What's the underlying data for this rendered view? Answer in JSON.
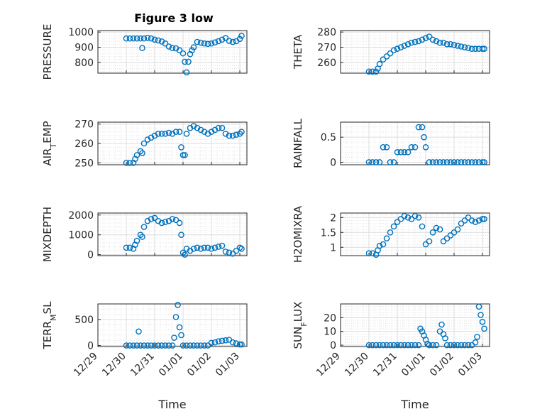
{
  "figure_title": "Figure 3 low",
  "colors": {
    "marker": "#0072BD",
    "axis": "#262626",
    "grid": "#dcdcdc"
  },
  "chart_data": [
    {
      "type": "scatter",
      "id": "pressure",
      "title": "Figure 3 low",
      "ylabel": "PRESSURE",
      "ylim": [
        730,
        1010
      ],
      "yticks": [
        800,
        900,
        1000
      ],
      "xlim": [
        0,
        4.2
      ],
      "grid": true,
      "show_xticks": false,
      "points": [
        [
          0.8,
          958
        ],
        [
          0.9,
          958
        ],
        [
          1.0,
          958
        ],
        [
          1.1,
          958
        ],
        [
          1.2,
          958
        ],
        [
          1.25,
          895
        ],
        [
          1.3,
          958
        ],
        [
          1.4,
          962
        ],
        [
          1.5,
          958
        ],
        [
          1.6,
          950
        ],
        [
          1.7,
          945
        ],
        [
          1.8,
          938
        ],
        [
          1.9,
          925
        ],
        [
          2.0,
          905
        ],
        [
          2.1,
          895
        ],
        [
          2.2,
          893
        ],
        [
          2.3,
          880
        ],
        [
          2.4,
          860
        ],
        [
          2.45,
          805
        ],
        [
          2.5,
          735
        ],
        [
          2.55,
          805
        ],
        [
          2.6,
          855
        ],
        [
          2.65,
          880
        ],
        [
          2.7,
          900
        ],
        [
          2.8,
          935
        ],
        [
          2.9,
          930
        ],
        [
          3.0,
          925
        ],
        [
          3.1,
          922
        ],
        [
          3.2,
          925
        ],
        [
          3.3,
          932
        ],
        [
          3.4,
          940
        ],
        [
          3.5,
          950
        ],
        [
          3.6,
          960
        ],
        [
          3.7,
          942
        ],
        [
          3.8,
          935
        ],
        [
          3.9,
          940
        ],
        [
          4.0,
          955
        ],
        [
          4.05,
          975
        ]
      ]
    },
    {
      "type": "scatter",
      "id": "theta",
      "ylabel": "THETA",
      "ylim": [
        253,
        281
      ],
      "yticks": [
        260,
        270,
        280
      ],
      "xlim": [
        0,
        4.2
      ],
      "grid": true,
      "show_xticks": false,
      "points": [
        [
          0.8,
          254
        ],
        [
          0.9,
          254
        ],
        [
          1.0,
          254
        ],
        [
          1.05,
          256
        ],
        [
          1.1,
          259
        ],
        [
          1.2,
          262
        ],
        [
          1.3,
          264
        ],
        [
          1.4,
          266
        ],
        [
          1.5,
          268
        ],
        [
          1.6,
          269
        ],
        [
          1.7,
          270
        ],
        [
          1.8,
          271
        ],
        [
          1.9,
          272
        ],
        [
          2.0,
          273
        ],
        [
          2.1,
          273.5
        ],
        [
          2.2,
          274
        ],
        [
          2.3,
          275
        ],
        [
          2.4,
          276
        ],
        [
          2.5,
          277
        ],
        [
          2.6,
          275
        ],
        [
          2.7,
          274
        ],
        [
          2.8,
          273
        ],
        [
          2.9,
          273
        ],
        [
          3.0,
          272
        ],
        [
          3.1,
          272
        ],
        [
          3.2,
          271.5
        ],
        [
          3.3,
          271
        ],
        [
          3.4,
          270.5
        ],
        [
          3.5,
          270
        ],
        [
          3.6,
          269.5
        ],
        [
          3.7,
          269
        ],
        [
          3.8,
          269
        ],
        [
          3.9,
          269
        ],
        [
          4.0,
          269
        ],
        [
          4.05,
          269
        ]
      ]
    },
    {
      "type": "scatter",
      "id": "air_temp",
      "ylabel": "AIR_TEMP",
      "ylim": [
        249,
        271
      ],
      "yticks": [
        250,
        260,
        270
      ],
      "xlim": [
        0,
        4.2
      ],
      "grid": true,
      "show_xticks": false,
      "points": [
        [
          0.8,
          250
        ],
        [
          0.9,
          250
        ],
        [
          1.0,
          250
        ],
        [
          1.05,
          252
        ],
        [
          1.1,
          254
        ],
        [
          1.2,
          256
        ],
        [
          1.25,
          255
        ],
        [
          1.3,
          260
        ],
        [
          1.4,
          262
        ],
        [
          1.5,
          263
        ],
        [
          1.6,
          264
        ],
        [
          1.7,
          265
        ],
        [
          1.8,
          265
        ],
        [
          1.9,
          265
        ],
        [
          2.0,
          265.5
        ],
        [
          2.1,
          265
        ],
        [
          2.2,
          266
        ],
        [
          2.3,
          266
        ],
        [
          2.35,
          258
        ],
        [
          2.4,
          254
        ],
        [
          2.45,
          254
        ],
        [
          2.5,
          265
        ],
        [
          2.6,
          268
        ],
        [
          2.7,
          269
        ],
        [
          2.8,
          268
        ],
        [
          2.9,
          267
        ],
        [
          3.0,
          266
        ],
        [
          3.1,
          265
        ],
        [
          3.2,
          266
        ],
        [
          3.3,
          267
        ],
        [
          3.4,
          268
        ],
        [
          3.5,
          268
        ],
        [
          3.6,
          265
        ],
        [
          3.7,
          264
        ],
        [
          3.8,
          264
        ],
        [
          3.9,
          264.5
        ],
        [
          4.0,
          265
        ],
        [
          4.05,
          266
        ]
      ]
    },
    {
      "type": "scatter",
      "id": "rainfall",
      "ylabel": "RAINFALL",
      "ylim": [
        -0.05,
        0.8
      ],
      "yticks": [
        0,
        0.5
      ],
      "xlim": [
        0,
        4.2
      ],
      "grid": true,
      "show_xticks": false,
      "points": [
        [
          0.8,
          0
        ],
        [
          0.9,
          0
        ],
        [
          1.0,
          0
        ],
        [
          1.1,
          0
        ],
        [
          1.2,
          0.3
        ],
        [
          1.3,
          0.3
        ],
        [
          1.4,
          0
        ],
        [
          1.5,
          0
        ],
        [
          1.6,
          0.2
        ],
        [
          1.7,
          0.2
        ],
        [
          1.8,
          0.2
        ],
        [
          1.9,
          0.2
        ],
        [
          2.0,
          0.3
        ],
        [
          2.1,
          0.3
        ],
        [
          2.2,
          0.7
        ],
        [
          2.3,
          0.7
        ],
        [
          2.35,
          0.5
        ],
        [
          2.4,
          0.3
        ],
        [
          2.5,
          0
        ],
        [
          2.6,
          0
        ],
        [
          2.7,
          0
        ],
        [
          2.8,
          0
        ],
        [
          2.9,
          0
        ],
        [
          3.0,
          0
        ],
        [
          3.1,
          0
        ],
        [
          3.2,
          0
        ],
        [
          3.3,
          0
        ],
        [
          3.4,
          0
        ],
        [
          3.5,
          0
        ],
        [
          3.6,
          0
        ],
        [
          3.7,
          0
        ],
        [
          3.8,
          0
        ],
        [
          3.9,
          0
        ],
        [
          4.0,
          0
        ],
        [
          4.05,
          0
        ]
      ]
    },
    {
      "type": "scatter",
      "id": "mixdepth",
      "ylabel": "MIXDEPTH",
      "ylim": [
        -50,
        2100
      ],
      "yticks": [
        0,
        1000,
        2000
      ],
      "xlim": [
        0,
        4.2
      ],
      "grid": true,
      "show_xticks": false,
      "points": [
        [
          0.8,
          350
        ],
        [
          0.9,
          350
        ],
        [
          1.0,
          300
        ],
        [
          1.05,
          500
        ],
        [
          1.1,
          700
        ],
        [
          1.2,
          1000
        ],
        [
          1.25,
          900
        ],
        [
          1.3,
          1400
        ],
        [
          1.4,
          1700
        ],
        [
          1.5,
          1800
        ],
        [
          1.6,
          1850
        ],
        [
          1.7,
          1700
        ],
        [
          1.8,
          1600
        ],
        [
          1.9,
          1650
        ],
        [
          2.0,
          1700
        ],
        [
          2.1,
          1800
        ],
        [
          2.2,
          1750
        ],
        [
          2.3,
          1600
        ],
        [
          2.35,
          1000
        ],
        [
          2.4,
          100
        ],
        [
          2.45,
          0
        ],
        [
          2.5,
          300
        ],
        [
          2.6,
          200
        ],
        [
          2.7,
          300
        ],
        [
          2.8,
          350
        ],
        [
          2.9,
          300
        ],
        [
          3.0,
          350
        ],
        [
          3.1,
          350
        ],
        [
          3.2,
          300
        ],
        [
          3.3,
          350
        ],
        [
          3.4,
          400
        ],
        [
          3.5,
          450
        ],
        [
          3.6,
          150
        ],
        [
          3.7,
          100
        ],
        [
          3.8,
          50
        ],
        [
          3.9,
          200
        ],
        [
          4.0,
          350
        ],
        [
          4.05,
          300
        ]
      ]
    },
    {
      "type": "scatter",
      "id": "h2omixra",
      "ylabel": "H2OMIXRA",
      "ylim": [
        0.72,
        2.15
      ],
      "yticks": [
        1,
        1.5,
        2
      ],
      "xlim": [
        0,
        4.2
      ],
      "grid": true,
      "show_xticks": false,
      "points": [
        [
          0.8,
          0.8
        ],
        [
          0.9,
          0.8
        ],
        [
          1.0,
          0.75
        ],
        [
          1.05,
          0.9
        ],
        [
          1.1,
          1.05
        ],
        [
          1.2,
          1.1
        ],
        [
          1.3,
          1.3
        ],
        [
          1.4,
          1.5
        ],
        [
          1.5,
          1.7
        ],
        [
          1.6,
          1.85
        ],
        [
          1.7,
          1.95
        ],
        [
          1.8,
          2.05
        ],
        [
          1.9,
          2.0
        ],
        [
          2.0,
          1.95
        ],
        [
          2.1,
          2.05
        ],
        [
          2.2,
          2.0
        ],
        [
          2.3,
          1.7
        ],
        [
          2.4,
          1.1
        ],
        [
          2.5,
          1.2
        ],
        [
          2.6,
          1.5
        ],
        [
          2.7,
          1.65
        ],
        [
          2.8,
          1.6
        ],
        [
          2.9,
          1.2
        ],
        [
          3.0,
          1.3
        ],
        [
          3.1,
          1.4
        ],
        [
          3.2,
          1.5
        ],
        [
          3.3,
          1.6
        ],
        [
          3.4,
          1.8
        ],
        [
          3.5,
          1.9
        ],
        [
          3.6,
          2.0
        ],
        [
          3.7,
          1.9
        ],
        [
          3.8,
          1.85
        ],
        [
          3.9,
          1.9
        ],
        [
          4.0,
          1.95
        ],
        [
          4.05,
          1.95
        ]
      ]
    },
    {
      "type": "scatter",
      "id": "terr_msl",
      "ylabel": "TERR_MSL",
      "ylim": [
        -20,
        800
      ],
      "yticks": [
        0,
        500
      ],
      "xlim": [
        0,
        4.2
      ],
      "grid": true,
      "show_xticks": true,
      "xticks": [
        0,
        0.8,
        1.6,
        2.4,
        3.2,
        4.0
      ],
      "xticklabels": [
        "12/29",
        "12/30",
        "12/31",
        "01/01",
        "01/02",
        "01/03"
      ],
      "xlabel": "Time",
      "points": [
        [
          0.8,
          0
        ],
        [
          0.9,
          0
        ],
        [
          1.0,
          0
        ],
        [
          1.1,
          0
        ],
        [
          1.15,
          270
        ],
        [
          1.2,
          0
        ],
        [
          1.3,
          0
        ],
        [
          1.4,
          0
        ],
        [
          1.5,
          0
        ],
        [
          1.6,
          0
        ],
        [
          1.7,
          0
        ],
        [
          1.8,
          0
        ],
        [
          1.9,
          0
        ],
        [
          2.0,
          0
        ],
        [
          2.1,
          0
        ],
        [
          2.15,
          150
        ],
        [
          2.2,
          550
        ],
        [
          2.25,
          780
        ],
        [
          2.3,
          350
        ],
        [
          2.35,
          200
        ],
        [
          2.4,
          0
        ],
        [
          2.5,
          0
        ],
        [
          2.6,
          0
        ],
        [
          2.7,
          0
        ],
        [
          2.8,
          0
        ],
        [
          2.9,
          0
        ],
        [
          3.0,
          0
        ],
        [
          3.1,
          0
        ],
        [
          3.2,
          50
        ],
        [
          3.3,
          60
        ],
        [
          3.4,
          80
        ],
        [
          3.5,
          90
        ],
        [
          3.6,
          100
        ],
        [
          3.7,
          110
        ],
        [
          3.8,
          60
        ],
        [
          3.9,
          40
        ],
        [
          4.0,
          20
        ],
        [
          4.05,
          20
        ]
      ]
    },
    {
      "type": "scatter",
      "id": "sun_flux",
      "ylabel": "SUN_FLUX",
      "ylim": [
        -1,
        30
      ],
      "yticks": [
        0,
        10,
        20
      ],
      "xlim": [
        0,
        4.2
      ],
      "grid": true,
      "show_xticks": true,
      "xticks": [
        0,
        0.8,
        1.6,
        2.4,
        3.2,
        4.0
      ],
      "xticklabels": [
        "12/29",
        "12/30",
        "12/31",
        "01/01",
        "01/02",
        "01/03"
      ],
      "xlabel": "Time",
      "points": [
        [
          0.8,
          0
        ],
        [
          0.9,
          0
        ],
        [
          1.0,
          0
        ],
        [
          1.1,
          0
        ],
        [
          1.2,
          0
        ],
        [
          1.3,
          0
        ],
        [
          1.4,
          0
        ],
        [
          1.5,
          0
        ],
        [
          1.6,
          0
        ],
        [
          1.7,
          0
        ],
        [
          1.8,
          0
        ],
        [
          1.9,
          0
        ],
        [
          2.0,
          0
        ],
        [
          2.1,
          0
        ],
        [
          2.2,
          0
        ],
        [
          2.25,
          12
        ],
        [
          2.3,
          10
        ],
        [
          2.35,
          7
        ],
        [
          2.4,
          4
        ],
        [
          2.45,
          1
        ],
        [
          2.5,
          0
        ],
        [
          2.6,
          0
        ],
        [
          2.7,
          0
        ],
        [
          2.8,
          10
        ],
        [
          2.85,
          15
        ],
        [
          2.9,
          8
        ],
        [
          2.95,
          5
        ],
        [
          3.0,
          0
        ],
        [
          3.1,
          0
        ],
        [
          3.2,
          0
        ],
        [
          3.3,
          0
        ],
        [
          3.4,
          0
        ],
        [
          3.5,
          0
        ],
        [
          3.6,
          0
        ],
        [
          3.7,
          0
        ],
        [
          3.8,
          2
        ],
        [
          3.85,
          6
        ],
        [
          3.9,
          28
        ],
        [
          3.95,
          22
        ],
        [
          4.0,
          17
        ],
        [
          4.05,
          12
        ]
      ]
    }
  ]
}
